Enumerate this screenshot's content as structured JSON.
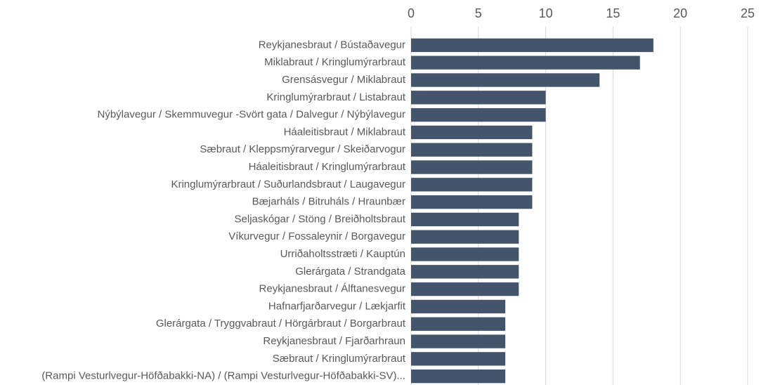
{
  "chart_data": {
    "type": "barh",
    "categories": [
      "Reykjanesbraut / Bústaðavegur",
      "Miklabraut / Kringlumýrarbraut",
      "Grensásvegur / Miklabraut",
      "Kringlumýrarbraut / Listabraut",
      "Nýbýlavegur / Skemmuvegur -Svört gata / Dalvegur / Nýbýlavegur",
      "Háaleitisbraut / Miklabraut",
      "Sæbraut / Kleppsmýrarvegur / Skeiðarvogur",
      "Háaleitisbraut / Kringlumýrarbraut",
      "Kringlumýrarbraut / Suðurlandsbraut / Laugavegur",
      "Bæjarháls / Bitruháls / Hraunbær",
      "Seljaskógar / Stöng / Breiðholtsbraut",
      "Víkurvegur / Fossaleynir / Borgavegur",
      "Urriðaholtsstræti / Kauptún",
      "Glerárgata / Strandgata",
      "Reykjanesbraut / Álftanesvegur",
      "Hafnarfjarðarvegur / Lækjarfit",
      "Glerárgata / Tryggvabraut / Hörgárbraut / Borgarbraut",
      "Reykjanesbraut / Fjarðarhraun",
      "Sæbraut / Kringlumýrarbraut",
      "(Rampi Vesturlvegur-Höfðabakki-NA) / (Rampi Vesturlvegur-Höfðabakki-SV)..."
    ],
    "values": [
      18,
      17,
      14,
      10,
      10,
      9,
      9,
      9,
      9,
      9,
      8,
      8,
      8,
      8,
      8,
      7,
      7,
      7,
      7,
      7
    ],
    "color": "#44546a",
    "xlim": [
      0,
      25
    ],
    "xticks": [
      0,
      5,
      10,
      15,
      20,
      25
    ],
    "grid": true
  }
}
